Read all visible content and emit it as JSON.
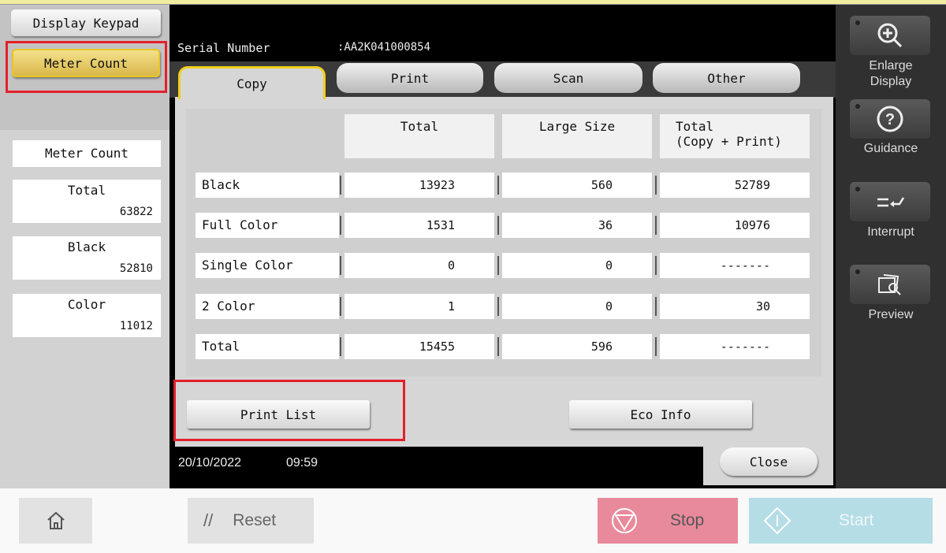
{
  "left_panel": {
    "display_keypad": "Display Keypad",
    "meter_count_button": "Meter Count",
    "meter_count_label": "Meter Count",
    "cards": [
      {
        "label": "Total",
        "value": "63822"
      },
      {
        "label": "Black",
        "value": "52810"
      },
      {
        "label": "Color",
        "value": "11012"
      }
    ]
  },
  "header": {
    "serial_label": "Serial Number",
    "serial_value": ":AA2K041000854"
  },
  "tabs": [
    {
      "label": "Copy",
      "active": true
    },
    {
      "label": "Print"
    },
    {
      "label": "Scan"
    },
    {
      "label": "Other"
    }
  ],
  "table": {
    "headers": [
      "Total",
      "Large Size",
      "Total\n(Copy + Print)"
    ],
    "rows": [
      {
        "label": "Black",
        "values": [
          "13923",
          "560",
          "52789"
        ]
      },
      {
        "label": "Full Color",
        "values": [
          "1531",
          "36",
          "10976"
        ]
      },
      {
        "label": "Single Color",
        "values": [
          "0",
          "0",
          "-------"
        ]
      },
      {
        "label": "2 Color",
        "values": [
          "1",
          "0",
          "30"
        ]
      },
      {
        "label": "Total",
        "values": [
          "15455",
          "596",
          "-------"
        ]
      }
    ]
  },
  "buttons": {
    "print_list": "Print List",
    "eco_info": "Eco Info",
    "close": "Close"
  },
  "status": {
    "date": "20/10/2022",
    "time": "09:59"
  },
  "right_panel": {
    "enlarge": "Enlarge\nDisplay",
    "guidance": "Guidance",
    "interrupt": "Interrupt",
    "preview": "Preview"
  },
  "bottom": {
    "reset": "Reset",
    "stop": "Stop",
    "start": "Start"
  },
  "colors": {
    "highlight": "#e3202a",
    "selected": "#e9c623",
    "stop": "#e88a9c",
    "start": "#b5dde6"
  }
}
